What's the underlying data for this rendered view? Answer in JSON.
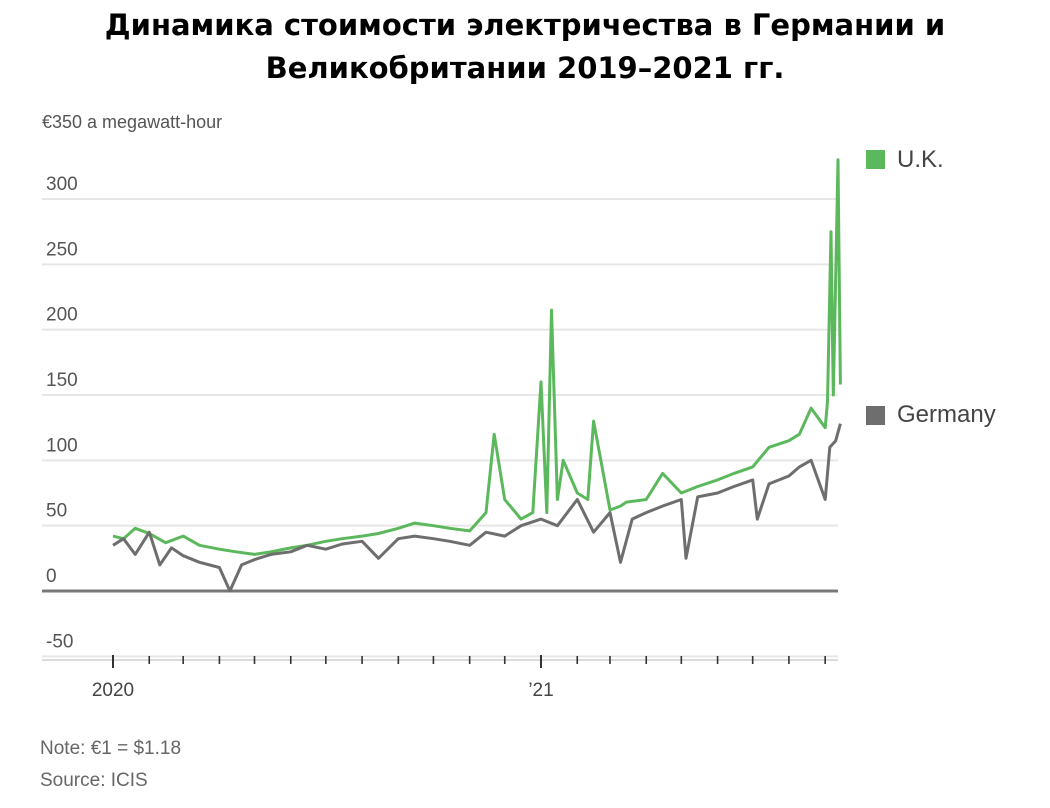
{
  "title": {
    "line1": "Динамика стоимости электричества в Германии и",
    "line2": "Великобритании 2019–2021 гг."
  },
  "units_label": "€350 a megawatt-hour",
  "note": "Note: €1 = $1.18",
  "source": "Source: ICIS",
  "chart_data": {
    "type": "line",
    "title": "Динамика стоимости электричества в Германии и Великобритании 2019–2021 гг.",
    "ylabel": "€350 a megawatt-hour",
    "ylim": [
      -55,
      350
    ],
    "yticks": [
      300,
      250,
      200,
      150,
      100,
      50,
      0,
      -50
    ],
    "ytick_labels": [
      "300",
      "250",
      "200",
      "150",
      "100",
      "50",
      "0",
      "-50"
    ],
    "xlim": [
      "2019-12-15",
      "2021-09-20"
    ],
    "xtick_labels": [
      {
        "x": "2020-01-01",
        "label": "2020"
      },
      {
        "x": "2021-01-01",
        "label": "’21"
      }
    ],
    "grid": true,
    "legend_position": "right",
    "colors": {
      "uk": "#5cb85c",
      "germany": "#6e6e6e",
      "grid": "#e6e6e6",
      "axis": "#777777"
    },
    "series": [
      {
        "name": "U.K.",
        "x": [
          "2020-01-01",
          "2020-01-10",
          "2020-01-20",
          "2020-02-01",
          "2020-02-15",
          "2020-03-01",
          "2020-03-15",
          "2020-04-01",
          "2020-04-15",
          "2020-05-01",
          "2020-05-15",
          "2020-06-01",
          "2020-06-15",
          "2020-07-01",
          "2020-07-15",
          "2020-08-01",
          "2020-08-15",
          "2020-09-01",
          "2020-09-15",
          "2020-10-01",
          "2020-10-15",
          "2020-11-01",
          "2020-11-10",
          "2020-11-15",
          "2020-11-22",
          "2020-12-01",
          "2020-12-15",
          "2020-12-25",
          "2021-01-01",
          "2021-01-06",
          "2021-01-10",
          "2021-01-15",
          "2021-01-20",
          "2021-02-01",
          "2021-02-10",
          "2021-02-15",
          "2021-03-01",
          "2021-03-10",
          "2021-03-15",
          "2021-04-01",
          "2021-04-15",
          "2021-05-01",
          "2021-05-15",
          "2021-06-01",
          "2021-06-15",
          "2021-07-01",
          "2021-07-15",
          "2021-08-01",
          "2021-08-10",
          "2021-08-20",
          "2021-09-01",
          "2021-09-03",
          "2021-09-06",
          "2021-09-08",
          "2021-09-10",
          "2021-09-12",
          "2021-09-14"
        ],
        "values": [
          42,
          40,
          48,
          44,
          37,
          42,
          35,
          32,
          30,
          28,
          30,
          33,
          35,
          38,
          40,
          42,
          44,
          48,
          52,
          50,
          48,
          46,
          55,
          60,
          120,
          70,
          55,
          60,
          160,
          60,
          215,
          70,
          100,
          75,
          70,
          130,
          62,
          65,
          68,
          70,
          90,
          75,
          80,
          85,
          90,
          95,
          110,
          115,
          120,
          140,
          125,
          145,
          275,
          150,
          240,
          330,
          158
        ]
      },
      {
        "name": "Germany",
        "x": [
          "2020-01-01",
          "2020-01-10",
          "2020-01-20",
          "2020-02-01",
          "2020-02-10",
          "2020-02-20",
          "2020-03-01",
          "2020-03-15",
          "2020-04-01",
          "2020-04-10",
          "2020-04-20",
          "2020-05-01",
          "2020-05-15",
          "2020-06-01",
          "2020-06-15",
          "2020-07-01",
          "2020-07-15",
          "2020-08-01",
          "2020-08-15",
          "2020-09-01",
          "2020-09-15",
          "2020-10-01",
          "2020-10-15",
          "2020-11-01",
          "2020-11-15",
          "2020-12-01",
          "2020-12-15",
          "2021-01-01",
          "2021-01-15",
          "2021-02-01",
          "2021-02-15",
          "2021-03-01",
          "2021-03-10",
          "2021-03-20",
          "2021-04-01",
          "2021-04-15",
          "2021-05-01",
          "2021-05-05",
          "2021-05-15",
          "2021-06-01",
          "2021-06-15",
          "2021-07-01",
          "2021-07-05",
          "2021-07-15",
          "2021-08-01",
          "2021-08-10",
          "2021-08-20",
          "2021-09-01",
          "2021-09-05",
          "2021-09-10",
          "2021-09-14"
        ],
        "values": [
          35,
          40,
          28,
          45,
          20,
          33,
          27,
          22,
          18,
          0,
          20,
          24,
          28,
          30,
          35,
          32,
          36,
          38,
          25,
          40,
          42,
          40,
          38,
          35,
          45,
          42,
          50,
          55,
          50,
          70,
          45,
          60,
          22,
          55,
          60,
          65,
          70,
          25,
          72,
          75,
          80,
          85,
          55,
          82,
          88,
          95,
          100,
          70,
          110,
          115,
          128
        ]
      }
    ]
  },
  "legend": [
    {
      "label": "U.K.",
      "color": "#5cb85c"
    },
    {
      "label": "Germany",
      "color": "#6e6e6e"
    }
  ]
}
